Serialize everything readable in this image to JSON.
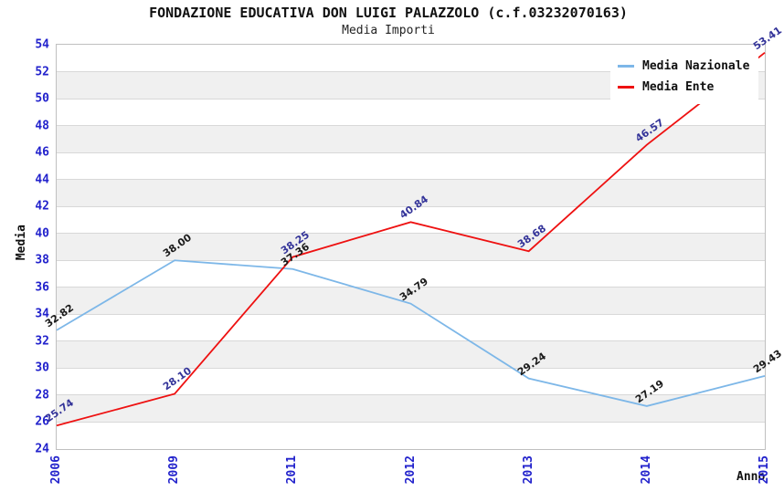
{
  "header": {
    "title": "FONDAZIONE EDUCATIVA DON LUIGI PALAZZOLO (c.f.03232070163)",
    "subtitle": "Media Importi"
  },
  "chart_data": {
    "type": "line",
    "categories": [
      "2006",
      "2009",
      "2011",
      "2012",
      "2013",
      "2014",
      "2015"
    ],
    "series": [
      {
        "name": "Media Nazionale",
        "color": "#7db7e8",
        "label_color": "#1a1a1a",
        "values": [
          32.82,
          38.0,
          37.36,
          34.79,
          29.24,
          27.19,
          29.43
        ],
        "point_labels": [
          "32.82",
          "38.00",
          "37.36",
          "34.79",
          "29.24",
          "27.19",
          "29.43"
        ]
      },
      {
        "name": "Media Ente",
        "color": "#ee1111",
        "label_color": "#333399",
        "values": [
          25.74,
          28.1,
          38.25,
          40.84,
          38.68,
          46.57,
          53.41
        ],
        "point_labels": [
          "25.74",
          "28.10",
          "38.25",
          "40.84",
          "38.68",
          "46.57",
          "53.41"
        ]
      }
    ],
    "title": "FONDAZIONE EDUCATIVA DON LUIGI PALAZZOLO (c.f.03232070163)",
    "subtitle": "Media Importi",
    "xlabel": "Anno",
    "ylabel": "Media",
    "ylim": [
      24,
      54
    ],
    "ytick_step": 2,
    "ytick_labels": [
      "54",
      "52",
      "50",
      "48",
      "46",
      "44",
      "42",
      "40",
      "38",
      "36",
      "34",
      "32",
      "30",
      "28",
      "26",
      "24"
    ],
    "grid": "horizontal-bands",
    "legend_position": "top-right",
    "band_colors": [
      "#ffffff",
      "#f0f0f0"
    ],
    "colors": {
      "axis_tick": "#2222cc",
      "gridline": "#d8d8d8",
      "plot_border": "#c0c0c0"
    }
  }
}
